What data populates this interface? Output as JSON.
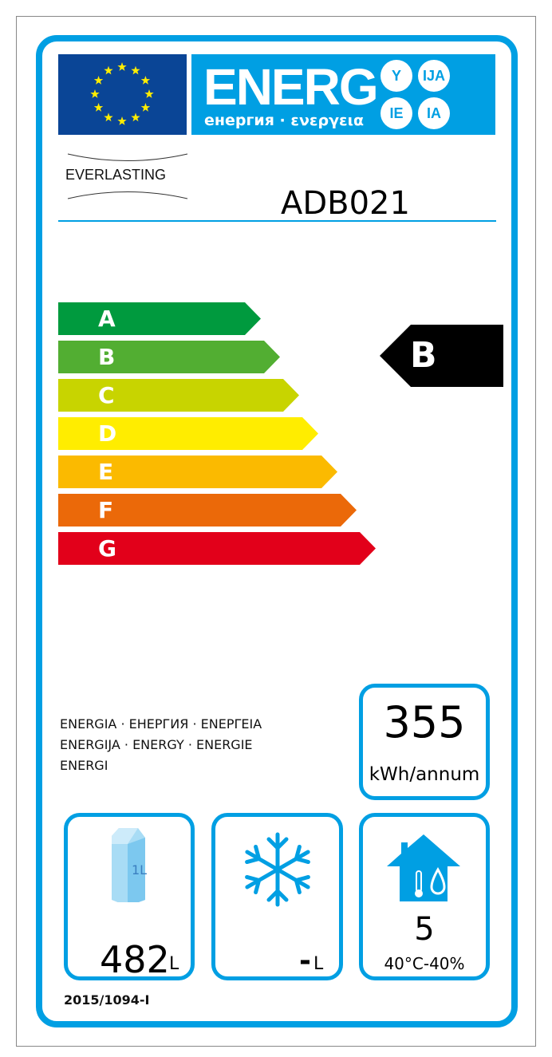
{
  "header": {
    "energy_word": "ENERG",
    "energy_subtitle": "енергия · ενεργεια",
    "suffixes": [
      "Y",
      "IJA",
      "IE",
      "IA"
    ],
    "brand": "EVERLASTING",
    "model": "ADB021"
  },
  "scale": {
    "classes": [
      {
        "label": "A",
        "color": "#009a3e"
      },
      {
        "label": "B",
        "color": "#52ae32"
      },
      {
        "label": "C",
        "color": "#c8d400"
      },
      {
        "label": "D",
        "color": "#ffed00"
      },
      {
        "label": "E",
        "color": "#fbba00"
      },
      {
        "label": "F",
        "color": "#eb6909"
      },
      {
        "label": "G",
        "color": "#e2001a"
      }
    ],
    "rating": "B"
  },
  "energy_words": [
    "ENERGIA · ЕНЕРГИЯ · ΕΝΕΡΓΕΙΑ",
    "ENERGIJA · ENERGY · ENERGIE",
    "ENERGI"
  ],
  "consumption": {
    "value": "355",
    "unit": "kWh/annum"
  },
  "fresh_volume": {
    "value": "482",
    "unit": "L",
    "icon": "milk-carton-icon",
    "carton_label": "1L"
  },
  "frozen_volume": {
    "value": "-",
    "unit": "L",
    "icon": "snowflake-icon"
  },
  "climate": {
    "value": "5",
    "conditions": "40°C-40%",
    "icon": "house-climate-icon"
  },
  "regulation": "2015/1094-I",
  "colors": {
    "accent": "#009fe3",
    "eu_blue": "#0a4596",
    "star": "#ffed00"
  }
}
